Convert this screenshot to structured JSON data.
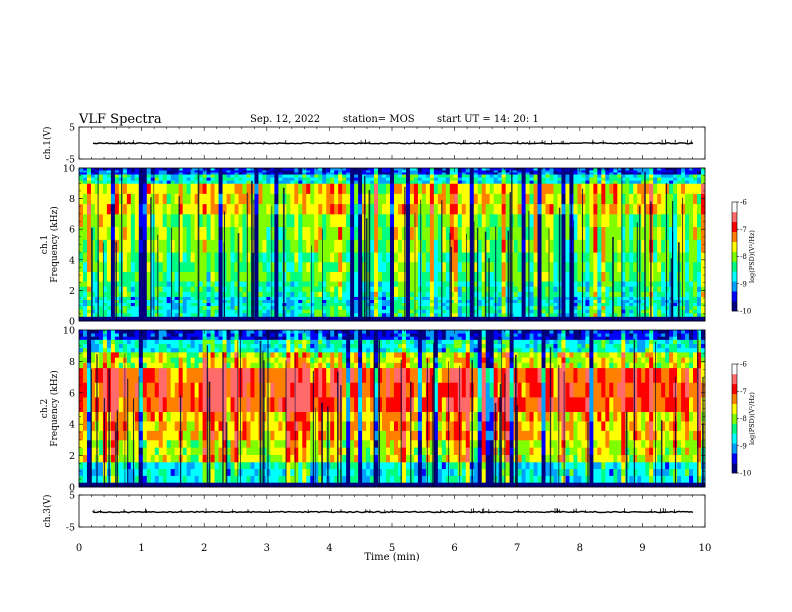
{
  "header": {
    "title": "VLF Spectra",
    "date": "Sep. 12, 2022",
    "station": "station= MOS",
    "start": "start  UT =   14: 20: 1"
  },
  "chart_data": [
    {
      "type": "line",
      "name": "ch1-waveform",
      "ylabel": "ch.1(V)",
      "ylim": [
        -5,
        5
      ],
      "yticks": [
        "5",
        "-5"
      ],
      "xlim": [
        0,
        10
      ],
      "level": -0.1
    },
    {
      "type": "heatmap",
      "name": "ch1-spectrogram",
      "ylabel": "ch.1\nFrequency (kHz)",
      "ylim": [
        0,
        10
      ],
      "yticks": [
        "0",
        "2",
        "4",
        "6",
        "8",
        "10"
      ],
      "xlim": [
        0,
        10
      ],
      "colorbar": {
        "label": "log(PSD)(V²/Hz)",
        "range": [
          -10,
          -6
        ],
        "ticks": [
          "-6",
          "-7",
          "-8",
          "-9",
          "-10"
        ]
      },
      "bands": [
        {
          "from": 0.0,
          "to": 0.3,
          "level": 0.0
        },
        {
          "from": 0.3,
          "to": 1.0,
          "level": 0.38
        },
        {
          "from": 1.0,
          "to": 1.6,
          "level": 0.32
        },
        {
          "from": 1.6,
          "to": 2.6,
          "level": 0.42
        },
        {
          "from": 2.6,
          "to": 4.5,
          "level": 0.48
        },
        {
          "from": 4.5,
          "to": 7.0,
          "level": 0.55
        },
        {
          "from": 7.0,
          "to": 9.0,
          "level": 0.66
        },
        {
          "from": 9.0,
          "to": 9.6,
          "level": 0.35
        },
        {
          "from": 9.6,
          "to": 10.0,
          "level": 0.12
        }
      ]
    },
    {
      "type": "heatmap",
      "name": "ch2-spectrogram",
      "ylabel": "ch.2\nFrequency (kHz)",
      "ylim": [
        0,
        10
      ],
      "yticks": [
        "0",
        "2",
        "4",
        "6",
        "8",
        "10"
      ],
      "xlim": [
        0,
        10
      ],
      "colorbar": {
        "label": "log(PSD)(V²/Hz)",
        "range": [
          -10,
          -6
        ],
        "ticks": [
          "-6",
          "-7",
          "-8",
          "-9",
          "-10"
        ]
      },
      "bands": [
        {
          "from": 0.0,
          "to": 0.3,
          "level": 0.0
        },
        {
          "from": 0.3,
          "to": 1.6,
          "level": 0.34
        },
        {
          "from": 1.6,
          "to": 3.0,
          "level": 0.62
        },
        {
          "from": 3.0,
          "to": 4.8,
          "level": 0.72
        },
        {
          "from": 4.8,
          "to": 7.6,
          "level": 0.86
        },
        {
          "from": 7.6,
          "to": 8.6,
          "level": 0.62
        },
        {
          "from": 8.6,
          "to": 9.4,
          "level": 0.36
        },
        {
          "from": 9.4,
          "to": 10.0,
          "level": 0.1
        }
      ]
    },
    {
      "type": "line",
      "name": "ch3-waveform",
      "ylabel": "ch.3(V)",
      "ylim": [
        -5,
        5
      ],
      "yticks": [
        "5",
        "-5"
      ],
      "xlim": [
        0,
        10
      ],
      "level": -0.3
    }
  ],
  "xaxis": {
    "label": "Time (min)",
    "ticks": [
      "0",
      "1",
      "2",
      "3",
      "4",
      "5",
      "6",
      "7",
      "8",
      "9",
      "10"
    ]
  },
  "colormap": [
    "#000080",
    "#0000ff",
    "#00a0ff",
    "#00ffff",
    "#00ff80",
    "#80ff00",
    "#ffff00",
    "#ff8000",
    "#ff0000",
    "#ff6a6a",
    "#ffffff"
  ]
}
